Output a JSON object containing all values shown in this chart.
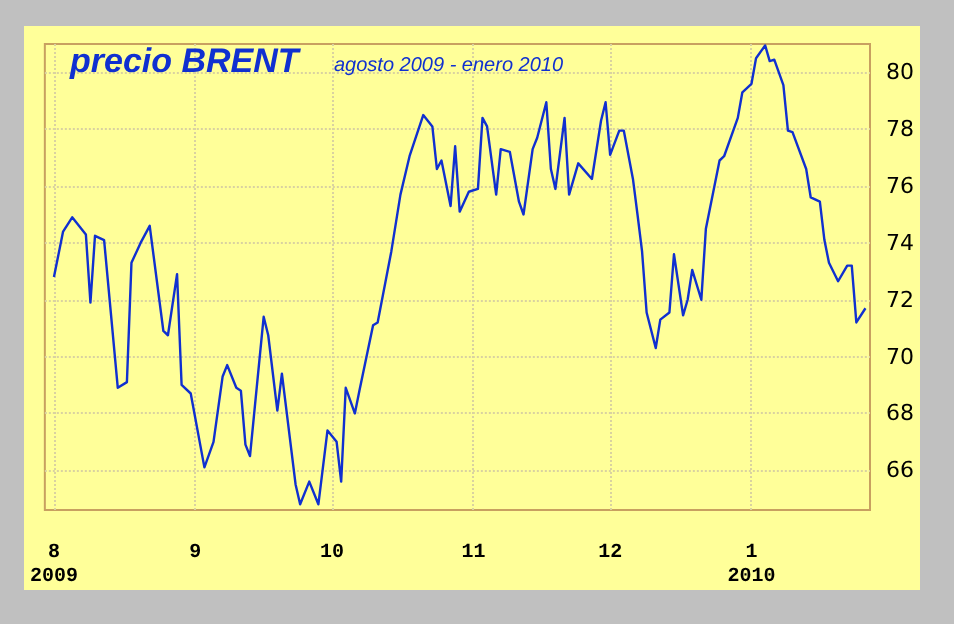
{
  "chart_data": {
    "type": "line",
    "title": "precio BRENT",
    "subtitle": "agosto 2009 - enero 2010",
    "x": [
      "2009-08-01",
      "2009-08-03",
      "2009-08-05",
      "2009-08-08",
      "2009-08-09",
      "2009-08-10",
      "2009-08-12",
      "2009-08-15",
      "2009-08-17",
      "2009-08-18",
      "2009-08-20",
      "2009-08-22",
      "2009-08-25",
      "2009-08-26",
      "2009-08-28",
      "2009-08-29",
      "2009-08-31",
      "2009-09-03",
      "2009-09-05",
      "2009-09-07",
      "2009-09-08",
      "2009-09-10",
      "2009-09-11",
      "2009-09-12",
      "2009-09-13",
      "2009-09-16",
      "2009-09-17",
      "2009-09-19",
      "2009-09-20",
      "2009-09-23",
      "2009-09-24",
      "2009-09-26",
      "2009-09-28",
      "2009-09-30",
      "2009-10-02",
      "2009-10-03",
      "2009-10-04",
      "2009-10-06",
      "2009-10-07",
      "2009-10-10",
      "2009-10-11",
      "2009-10-14",
      "2009-10-16",
      "2009-10-18",
      "2009-10-21",
      "2009-10-23",
      "2009-10-24",
      "2009-10-25",
      "2009-10-27",
      "2009-10-28",
      "2009-10-29",
      "2009-10-31",
      "2009-11-02",
      "2009-11-03",
      "2009-11-04",
      "2009-11-06",
      "2009-11-07",
      "2009-11-09",
      "2009-11-11",
      "2009-11-12",
      "2009-11-14",
      "2009-11-15",
      "2009-11-17",
      "2009-11-18",
      "2009-11-19",
      "2009-11-21",
      "2009-11-22",
      "2009-11-24",
      "2009-11-27",
      "2009-11-29",
      "2009-11-30",
      "2009-12-01",
      "2009-12-03",
      "2009-12-04",
      "2009-12-06",
      "2009-12-07",
      "2009-12-08",
      "2009-12-09",
      "2009-12-11",
      "2009-12-12",
      "2009-12-14",
      "2009-12-15",
      "2009-12-17",
      "2009-12-18",
      "2009-12-19",
      "2009-12-21",
      "2009-12-22",
      "2009-12-25",
      "2009-12-26",
      "2009-12-29",
      "2009-12-30",
      "2010-01-01",
      "2010-01-02",
      "2010-01-04",
      "2010-01-05",
      "2010-01-06",
      "2010-01-08",
      "2010-01-09",
      "2010-01-10",
      "2010-01-13",
      "2010-01-14",
      "2010-01-16",
      "2010-01-17",
      "2010-01-18",
      "2010-01-20",
      "2010-01-22",
      "2010-01-23",
      "2010-01-24",
      "2010-01-26"
    ],
    "series": [
      {
        "color": "#1030d0",
        "values": [
          72.8,
          74.4,
          74.9,
          74.3,
          71.9,
          74.25,
          74.1,
          68.9,
          69.1,
          73.3,
          74.0,
          74.6,
          70.9,
          70.75,
          72.9,
          69.0,
          68.7,
          66.1,
          67.0,
          69.3,
          69.7,
          68.9,
          68.8,
          66.9,
          66.5,
          71.4,
          70.75,
          68.1,
          69.4,
          65.5,
          64.8,
          65.6,
          64.8,
          67.4,
          67.0,
          65.6,
          68.9,
          68.0,
          68.8,
          71.1,
          71.2,
          73.7,
          75.7,
          77.05,
          78.5,
          78.1,
          76.6,
          76.9,
          75.3,
          77.4,
          75.1,
          75.8,
          75.9,
          78.4,
          78.1,
          75.7,
          77.3,
          77.2,
          75.45,
          75.0,
          77.3,
          77.7,
          78.95,
          76.6,
          75.9,
          78.4,
          75.7,
          76.8,
          76.25,
          78.3,
          78.95,
          77.1,
          77.95,
          77.95,
          76.25,
          75.0,
          73.7,
          71.55,
          70.3,
          71.3,
          71.55,
          73.6,
          71.45,
          72.0,
          73.05,
          72.0,
          74.5,
          76.9,
          77.05,
          78.4,
          79.3,
          79.6,
          80.5,
          80.95,
          80.4,
          80.45,
          79.55,
          77.95,
          77.9,
          76.6,
          75.6,
          75.45,
          74.1,
          73.3,
          72.65,
          73.2,
          73.2,
          71.2,
          71.7
        ]
      }
    ],
    "xlim": [
      "2009-07-30",
      "2010-01-27"
    ],
    "xticks": [
      {
        "value": "2009-08-01",
        "label": "8\n2009"
      },
      {
        "value": "2009-09-01",
        "label": "9"
      },
      {
        "value": "2009-10-01",
        "label": "10"
      },
      {
        "value": "2009-11-01",
        "label": "11"
      },
      {
        "value": "2009-12-01",
        "label": "12"
      },
      {
        "value": "2010-01-01",
        "label": "1\n2010"
      }
    ],
    "ylim": [
      64.6,
      81.0
    ],
    "yticks": [
      66,
      68,
      70,
      72,
      74,
      76,
      78,
      80
    ],
    "grid": true,
    "marker": "none",
    "line_style": "solid"
  }
}
